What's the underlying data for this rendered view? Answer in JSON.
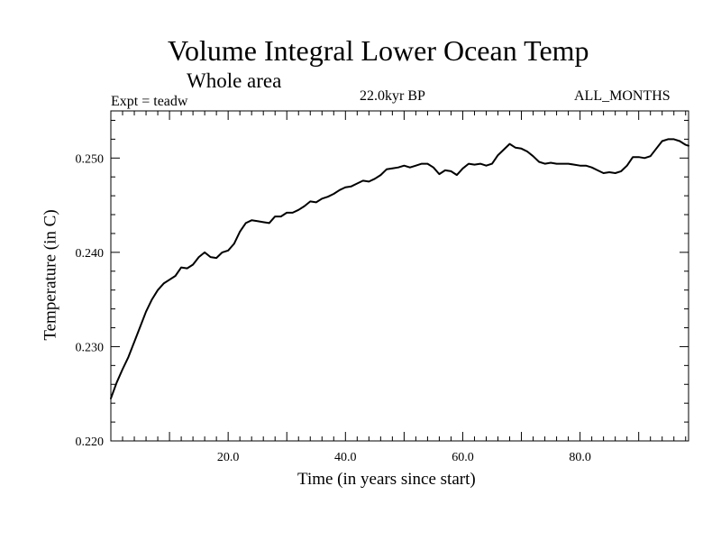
{
  "chart_data": {
    "type": "line",
    "title": "Volume Integral Lower Ocean Temp",
    "subtitle": "Whole area",
    "expt_label": "Expt = teadw",
    "period_label": "22.0kyr BP",
    "months_label": "ALL_MONTHS",
    "xlabel": "Time (in years since start)",
    "ylabel": "Temperature (in C)",
    "xlim": [
      0.0,
      98.5
    ],
    "ylim": [
      0.22,
      0.255
    ],
    "x_ticks": [
      20,
      40,
      60,
      80
    ],
    "x_tick_labels": [
      "20.0",
      "40.0",
      "60.0",
      "80.0"
    ],
    "y_ticks": [
      0.22,
      0.23,
      0.24,
      0.25
    ],
    "y_tick_labels": [
      "0.220",
      "0.230",
      "0.240",
      "0.250"
    ],
    "grid": false,
    "series": [
      {
        "name": "Volume Integral Lower Ocean Temp",
        "x": [
          0,
          1,
          2,
          3,
          4,
          5,
          6,
          7,
          8,
          9,
          10,
          11,
          12,
          13,
          14,
          15,
          16,
          17,
          18,
          19,
          20,
          21,
          22,
          23,
          24,
          25,
          26,
          27,
          28,
          29,
          30,
          31,
          32,
          33,
          34,
          35,
          36,
          37,
          38,
          39,
          40,
          41,
          42,
          43,
          44,
          45,
          46,
          47,
          48,
          49,
          50,
          51,
          52,
          53,
          54,
          55,
          56,
          57,
          58,
          59,
          60,
          61,
          62,
          63,
          64,
          65,
          66,
          67,
          68,
          69,
          70,
          71,
          72,
          73,
          74,
          75,
          76,
          77,
          78,
          79,
          80,
          81,
          82,
          83,
          84,
          85,
          86,
          87,
          88,
          89,
          90,
          91,
          92,
          93,
          94,
          95,
          96,
          97,
          98,
          98.5
        ],
        "values": [
          0.2245,
          0.2262,
          0.2276,
          0.2289,
          0.2305,
          0.2321,
          0.2337,
          0.235,
          0.236,
          0.2367,
          0.2371,
          0.2375,
          0.2384,
          0.2383,
          0.2387,
          0.2395,
          0.24,
          0.2395,
          0.2394,
          0.24,
          0.2402,
          0.2409,
          0.2422,
          0.2431,
          0.2434,
          0.2433,
          0.2432,
          0.2431,
          0.2438,
          0.2438,
          0.2442,
          0.2442,
          0.2445,
          0.2449,
          0.2454,
          0.2453,
          0.2457,
          0.2459,
          0.2462,
          0.2466,
          0.2469,
          0.247,
          0.2473,
          0.2476,
          0.2475,
          0.2478,
          0.2482,
          0.2488,
          0.2489,
          0.249,
          0.2492,
          0.249,
          0.2492,
          0.2494,
          0.2494,
          0.249,
          0.2483,
          0.2487,
          0.2486,
          0.2482,
          0.2489,
          0.2494,
          0.2493,
          0.2494,
          0.2492,
          0.2494,
          0.2503,
          0.2509,
          0.2515,
          0.2511,
          0.251,
          0.2507,
          0.2502,
          0.2496,
          0.2494,
          0.2495,
          0.2494,
          0.2494,
          0.2494,
          0.2493,
          0.2492,
          0.2492,
          0.249,
          0.2487,
          0.2484,
          0.2485,
          0.2484,
          0.2486,
          0.2492,
          0.2501,
          0.2501,
          0.25,
          0.2502,
          0.251,
          0.2518,
          0.252,
          0.252,
          0.2518,
          0.2514,
          0.2513
        ]
      }
    ]
  }
}
